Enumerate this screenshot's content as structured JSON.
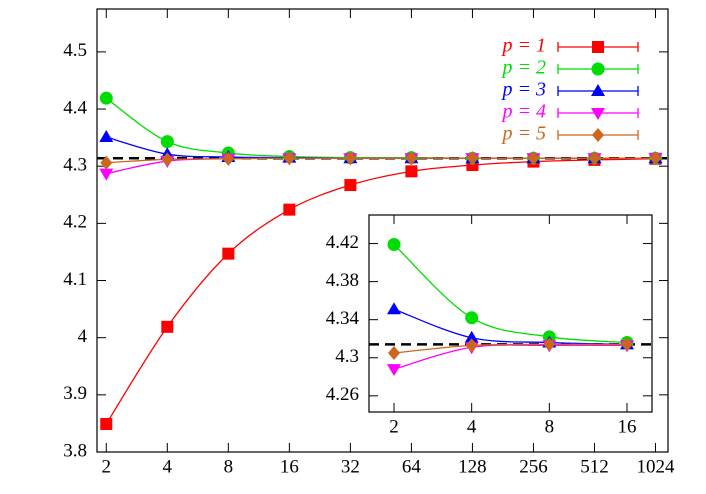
{
  "chart_data": [
    {
      "type": "line",
      "xscale": "log2",
      "x": [
        2,
        4,
        8,
        16,
        32,
        64,
        128,
        256,
        512,
        1024
      ],
      "xlim": [
        1.8,
        1180
      ],
      "xticks": [
        2,
        4,
        8,
        16,
        32,
        64,
        128,
        256,
        512,
        1024
      ],
      "ylim": [
        3.8,
        4.575
      ],
      "yticks": [
        3.8,
        3.9,
        4,
        4.1,
        4.2,
        4.3,
        4.4,
        4.5
      ],
      "reference_line": 4.314,
      "legend": "upper right",
      "series": [
        {
          "name": "p = 1",
          "color": "#ff0000",
          "marker": "square",
          "values": [
            3.849,
            4.019,
            4.147,
            4.224,
            4.267,
            4.291,
            4.302,
            4.308,
            4.311,
            4.313
          ]
        },
        {
          "name": "p = 2",
          "color": "#00dd00",
          "marker": "circle",
          "values": [
            4.419,
            4.343,
            4.323,
            4.317,
            4.315,
            4.315,
            4.314,
            4.314,
            4.314,
            4.314
          ]
        },
        {
          "name": "p = 3",
          "color": "#0000ff",
          "marker": "triangle-up",
          "values": [
            4.351,
            4.321,
            4.316,
            4.315,
            4.314,
            4.314,
            4.314,
            4.314,
            4.314,
            4.314
          ]
        },
        {
          "name": "p = 4",
          "color": "#ff00ff",
          "marker": "triangle-down",
          "values": [
            4.287,
            4.309,
            4.313,
            4.314,
            4.314,
            4.314,
            4.314,
            4.314,
            4.314,
            4.314
          ]
        },
        {
          "name": "p = 5",
          "color": "#cc661e",
          "marker": "diamond",
          "values": [
            4.306,
            4.312,
            4.313,
            4.314,
            4.314,
            4.314,
            4.314,
            4.314,
            4.314,
            4.314
          ]
        }
      ]
    },
    {
      "type": "line",
      "xscale": "log2",
      "x": [
        2,
        4,
        8,
        16
      ],
      "xlim": [
        1.6,
        20
      ],
      "xticks": [
        2,
        4,
        8,
        16
      ],
      "ylim": [
        4.243,
        4.45
      ],
      "yticks": [
        4.26,
        4.3,
        4.34,
        4.38,
        4.42
      ],
      "reference_line": 4.314,
      "series": [
        {
          "color": "#00dd00",
          "marker": "circle",
          "values": [
            4.419,
            4.342,
            4.322,
            4.316
          ]
        },
        {
          "color": "#0000ff",
          "marker": "triangle-up",
          "values": [
            4.351,
            4.321,
            4.316,
            4.314
          ]
        },
        {
          "color": "#ff00ff",
          "marker": "triangle-down",
          "values": [
            4.288,
            4.311,
            4.313,
            4.313
          ]
        },
        {
          "color": "#cc661e",
          "marker": "diamond",
          "values": [
            4.305,
            4.313,
            4.314,
            4.314
          ]
        }
      ]
    }
  ]
}
